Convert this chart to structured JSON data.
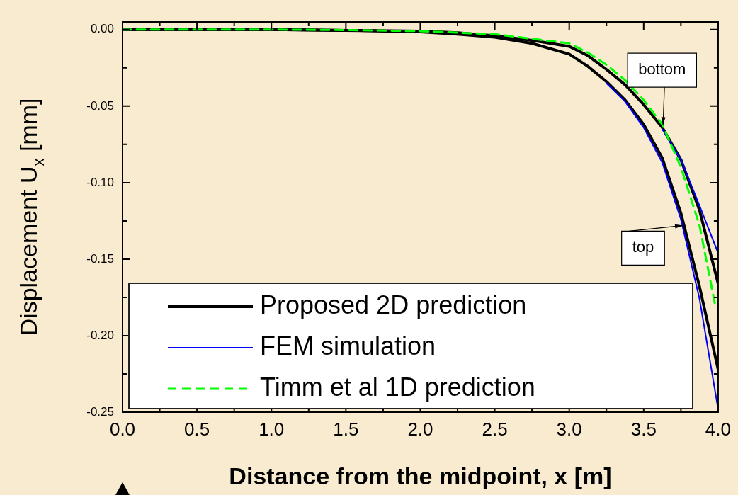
{
  "chart_data": {
    "type": "line",
    "xlabel": "Distance from the midpoint, x [m]",
    "ylabel": "Displacement U$_{x}$ [mm]",
    "x": [
      0,
      0.5,
      1.0,
      1.5,
      2.0,
      2.25,
      2.5,
      2.75,
      3.0,
      3.125,
      3.25,
      3.375,
      3.5,
      3.625,
      3.75,
      3.875,
      4.0
    ],
    "series": [
      {
        "name": "Proposed 2D prediction",
        "color": "#000000",
        "values": [
          0,
          0,
          0,
          -0.0005,
          -0.001,
          -0.002,
          -0.004,
          -0.007,
          -0.011,
          -0.017,
          -0.026,
          -0.036,
          -0.049,
          -0.064,
          -0.085,
          -0.118,
          -0.166
        ]
      },
      {
        "color": "#000000",
        "values": [
          0,
          0,
          0,
          -0.0005,
          -0.0015,
          -0.003,
          -0.005,
          -0.009,
          -0.016,
          -0.024,
          -0.034,
          -0.046,
          -0.062,
          -0.084,
          -0.12,
          -0.168,
          -0.222
        ]
      },
      {
        "name": "FEM simulation",
        "color": "#0000ff",
        "x": [
          3.625,
          3.75,
          3.875,
          4.0
        ],
        "values": [
          -0.065,
          -0.085,
          -0.115,
          -0.146
        ]
      },
      {
        "color": "#0000ff",
        "x": [
          3.25,
          3.375,
          3.5,
          3.625,
          3.75,
          3.875,
          4.0
        ],
        "values": [
          -0.035,
          -0.047,
          -0.064,
          -0.087,
          -0.124,
          -0.176,
          -0.248
        ]
      },
      {
        "name": "Timm et al 1D prediction",
        "color": "#00ff00",
        "line_style": "dashed",
        "x": [
          0,
          0.5,
          1.0,
          1.5,
          2.0,
          2.25,
          2.5,
          2.75,
          3.0,
          3.125,
          3.25,
          3.375,
          3.5,
          3.625,
          3.75,
          3.875,
          3.98
        ],
        "values": [
          0,
          0,
          0,
          -0.0003,
          -0.001,
          -0.002,
          -0.003,
          -0.006,
          -0.009,
          -0.015,
          -0.023,
          -0.033,
          -0.046,
          -0.062,
          -0.09,
          -0.128,
          -0.18
        ]
      }
    ],
    "annotations": [
      {
        "text": "bottom",
        "x": 3.63,
        "y": -0.064
      },
      {
        "text": "top",
        "x": 3.78,
        "y": -0.128
      }
    ],
    "xlim": [
      0,
      4
    ],
    "xticks": [
      {
        "value": 0,
        "label": "0.0"
      },
      {
        "value": 0.25,
        "label": null
      },
      {
        "value": 0.5,
        "label": "0.5"
      },
      {
        "value": 0.75,
        "label": null
      },
      {
        "value": 1,
        "label": "1.0"
      },
      {
        "value": 1.25,
        "label": null
      },
      {
        "value": 1.5,
        "label": "1.5"
      },
      {
        "value": 1.75,
        "label": null
      },
      {
        "value": 2,
        "label": "2.0"
      },
      {
        "value": 2.25,
        "label": null
      },
      {
        "value": 2.5,
        "label": "2.5"
      },
      {
        "value": 2.75,
        "label": null
      },
      {
        "value": 3,
        "label": "3.0"
      },
      {
        "value": 3.25,
        "label": null
      },
      {
        "value": 3.5,
        "label": "3.5"
      },
      {
        "value": 3.75,
        "label": null
      },
      {
        "value": 4,
        "label": "4.0"
      }
    ],
    "ylim": [
      -0.25,
      0.005
    ],
    "yticks": [
      {
        "value": -0.25,
        "label": "-0.25"
      },
      {
        "value": -0.225,
        "label": null
      },
      {
        "value": -0.2,
        "label": "-0.20"
      },
      {
        "value": -0.175,
        "label": null
      },
      {
        "value": -0.15,
        "label": "-0.15"
      },
      {
        "value": -0.125,
        "label": null
      },
      {
        "value": -0.1,
        "label": "-0.10"
      },
      {
        "value": -0.075,
        "label": null
      },
      {
        "value": -0.05,
        "label": "-0.05"
      },
      {
        "value": -0.025,
        "label": null
      },
      {
        "value": 0,
        "label": "0.00"
      }
    ],
    "legend": "bottom left",
    "marker": "none",
    "line_style": "solid"
  }
}
